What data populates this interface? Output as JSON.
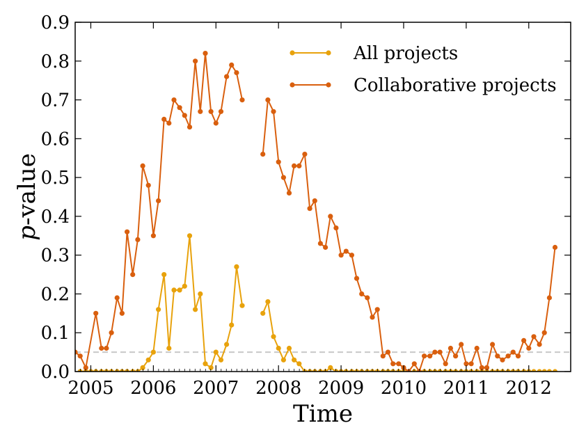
{
  "chart_data": {
    "type": "line",
    "title": "",
    "xlabel": "Time",
    "ylabel_prefix": "p",
    "ylabel_suffix": "-value",
    "xlim": [
      2004.75,
      2012.67
    ],
    "ylim": [
      0.0,
      0.9
    ],
    "x_ticks": [
      2005,
      2006,
      2007,
      2008,
      2009,
      2010,
      2011,
      2012
    ],
    "x_tick_labels": [
      "2005",
      "2006",
      "2007",
      "2008",
      "2009",
      "2010",
      "2011",
      "2012"
    ],
    "y_ticks": [
      0.0,
      0.1,
      0.2,
      0.3,
      0.4,
      0.5,
      0.6,
      0.7,
      0.8,
      0.9
    ],
    "y_tick_labels": [
      "0.0",
      "0.1",
      "0.2",
      "0.3",
      "0.4",
      "0.5",
      "0.6",
      "0.7",
      "0.8",
      "0.9"
    ],
    "reference_line": {
      "y": 0.05,
      "color": "#c8c8c8",
      "style": "dashed"
    },
    "grid": false,
    "legend_position": "top-right",
    "series": [
      {
        "name": "All projects",
        "color": "#e8a20c",
        "segments": [
          {
            "x": [
              2004.83,
              2004.92,
              2005.0,
              2005.08,
              2005.17,
              2005.25,
              2005.33,
              2005.42,
              2005.5,
              2005.58,
              2005.67,
              2005.75,
              2005.83,
              2005.92,
              2006.0,
              2006.08,
              2006.17,
              2006.25,
              2006.33,
              2006.42,
              2006.5,
              2006.58,
              2006.67,
              2006.75,
              2006.83,
              2006.92,
              2007.0,
              2007.08,
              2007.17,
              2007.25,
              2007.33,
              2007.42
            ],
            "y": [
              0.0,
              0.0,
              0.0,
              0.0,
              0.0,
              0.0,
              0.0,
              0.0,
              0.0,
              0.0,
              0.0,
              0.0,
              0.01,
              0.03,
              0.05,
              0.16,
              0.25,
              0.06,
              0.21,
              0.21,
              0.22,
              0.35,
              0.16,
              0.2,
              0.02,
              0.01,
              0.05,
              0.03,
              0.07,
              0.12,
              0.27,
              0.17
            ]
          },
          {
            "x": [
              2007.75,
              2007.83,
              2007.92,
              2008.0,
              2008.08,
              2008.17,
              2008.25,
              2008.33,
              2008.42,
              2008.5,
              2008.58,
              2008.67,
              2008.75,
              2008.83,
              2008.92,
              2009.0,
              2009.08,
              2009.17,
              2009.25,
              2009.33,
              2009.42,
              2009.5,
              2009.58,
              2009.67,
              2009.75,
              2009.83,
              2009.92,
              2010.0,
              2010.08,
              2010.17,
              2010.25,
              2010.33,
              2010.42,
              2010.5,
              2010.58,
              2010.67,
              2010.75,
              2010.83,
              2010.92,
              2011.0,
              2011.08,
              2011.17,
              2011.25,
              2011.33,
              2011.42,
              2011.5,
              2011.58,
              2011.67,
              2011.75,
              2011.83,
              2011.92,
              2012.0,
              2012.08,
              2012.17,
              2012.25,
              2012.33,
              2012.42
            ],
            "y": [
              0.15,
              0.18,
              0.09,
              0.06,
              0.03,
              0.06,
              0.03,
              0.02,
              0.0,
              0.0,
              0.0,
              0.0,
              0.0,
              0.01,
              0.0,
              0.0,
              0.0,
              0.0,
              0.0,
              0.0,
              0.0,
              0.0,
              0.0,
              0.0,
              0.0,
              0.0,
              0.0,
              0.0,
              0.0,
              0.0,
              0.0,
              0.0,
              0.0,
              0.0,
              0.0,
              0.0,
              0.0,
              0.0,
              0.0,
              0.0,
              0.0,
              0.0,
              0.0,
              0.0,
              0.0,
              0.0,
              0.0,
              0.0,
              0.0,
              0.0,
              0.0,
              0.0,
              0.0,
              0.0,
              0.0,
              0.0,
              0.0
            ]
          }
        ]
      },
      {
        "name": "Collaborative projects",
        "color": "#d95f0e",
        "segments": [
          {
            "x": [
              2004.75,
              2004.83,
              2004.92,
              2005.08,
              2005.17,
              2005.25,
              2005.33,
              2005.42,
              2005.5,
              2005.58,
              2005.67,
              2005.75,
              2005.83,
              2005.92,
              2006.0,
              2006.08,
              2006.17,
              2006.25,
              2006.33,
              2006.42,
              2006.5,
              2006.58,
              2006.67,
              2006.75,
              2006.83,
              2006.92,
              2007.0,
              2007.08,
              2007.17,
              2007.25,
              2007.33,
              2007.42
            ],
            "y": [
              0.05,
              0.04,
              0.01,
              0.15,
              0.06,
              0.06,
              0.1,
              0.19,
              0.15,
              0.36,
              0.25,
              0.34,
              0.53,
              0.48,
              0.35,
              0.44,
              0.65,
              0.64,
              0.7,
              0.68,
              0.66,
              0.63,
              0.8,
              0.67,
              0.82,
              0.67,
              0.64,
              0.67,
              0.76,
              0.79,
              0.77,
              0.7
            ]
          },
          {
            "x": [
              2007.75,
              2007.83,
              2007.92,
              2008.0,
              2008.08,
              2008.17,
              2008.25,
              2008.33,
              2008.42,
              2008.5,
              2008.58,
              2008.67,
              2008.75,
              2008.83,
              2008.92,
              2009.0,
              2009.08,
              2009.17,
              2009.25,
              2009.33,
              2009.42,
              2009.5,
              2009.58,
              2009.67,
              2009.75,
              2009.83,
              2009.92,
              2010.0,
              2010.08,
              2010.17,
              2010.25,
              2010.33,
              2010.42,
              2010.5,
              2010.58,
              2010.67,
              2010.75,
              2010.83,
              2010.92,
              2011.0,
              2011.08,
              2011.17,
              2011.25,
              2011.33,
              2011.42,
              2011.5,
              2011.58,
              2011.67,
              2011.75,
              2011.83,
              2011.92,
              2012.0,
              2012.08,
              2012.17,
              2012.25,
              2012.33,
              2012.42
            ],
            "y": [
              0.56,
              0.7,
              0.67,
              0.54,
              0.5,
              0.46,
              0.53,
              0.53,
              0.56,
              0.42,
              0.44,
              0.33,
              0.32,
              0.4,
              0.37,
              0.3,
              0.31,
              0.3,
              0.24,
              0.2,
              0.19,
              0.14,
              0.16,
              0.04,
              0.05,
              0.02,
              0.02,
              0.01,
              0.0,
              0.02,
              0.0,
              0.04,
              0.04,
              0.05,
              0.05,
              0.02,
              0.06,
              0.04,
              0.07,
              0.02,
              0.02,
              0.06,
              0.01,
              0.01,
              0.07,
              0.04,
              0.03,
              0.04,
              0.05,
              0.04,
              0.08,
              0.06,
              0.09,
              0.07,
              0.1,
              0.19,
              0.32
            ]
          }
        ]
      }
    ]
  }
}
